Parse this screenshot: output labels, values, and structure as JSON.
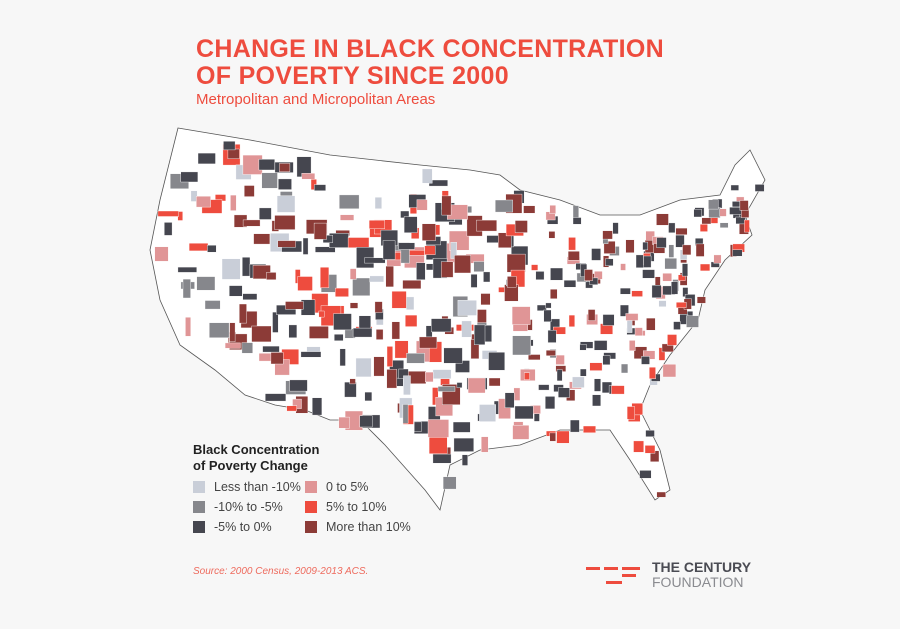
{
  "header": {
    "title_line1": "CHANGE IN BLACK CONCENTRATION",
    "title_line2": "OF POVERTY SINCE 2000",
    "subtitle": "Metropolitan and Micropolitan Areas"
  },
  "legend": {
    "title_line1": "Black Concentration",
    "title_line2": "of Poverty Change",
    "items": [
      {
        "label": "Less than -10%",
        "color": "#c9ced8"
      },
      {
        "label": "0 to 5%",
        "color": "#e09596"
      },
      {
        "label": "-10% to -5%",
        "color": "#86878c"
      },
      {
        "label": "5% to 10%",
        "color": "#ee4c3e"
      },
      {
        "label": "-5% to 0%",
        "color": "#45464f"
      },
      {
        "label": "More than 10%",
        "color": "#8c3b37"
      }
    ]
  },
  "footer": {
    "source": "Source: 2000 Census, 2009-2013 ACS.",
    "logo_line1": "THE CENTURY",
    "logo_line2": "FOUNDATION",
    "logo_color": "#ee4c3e"
  }
}
